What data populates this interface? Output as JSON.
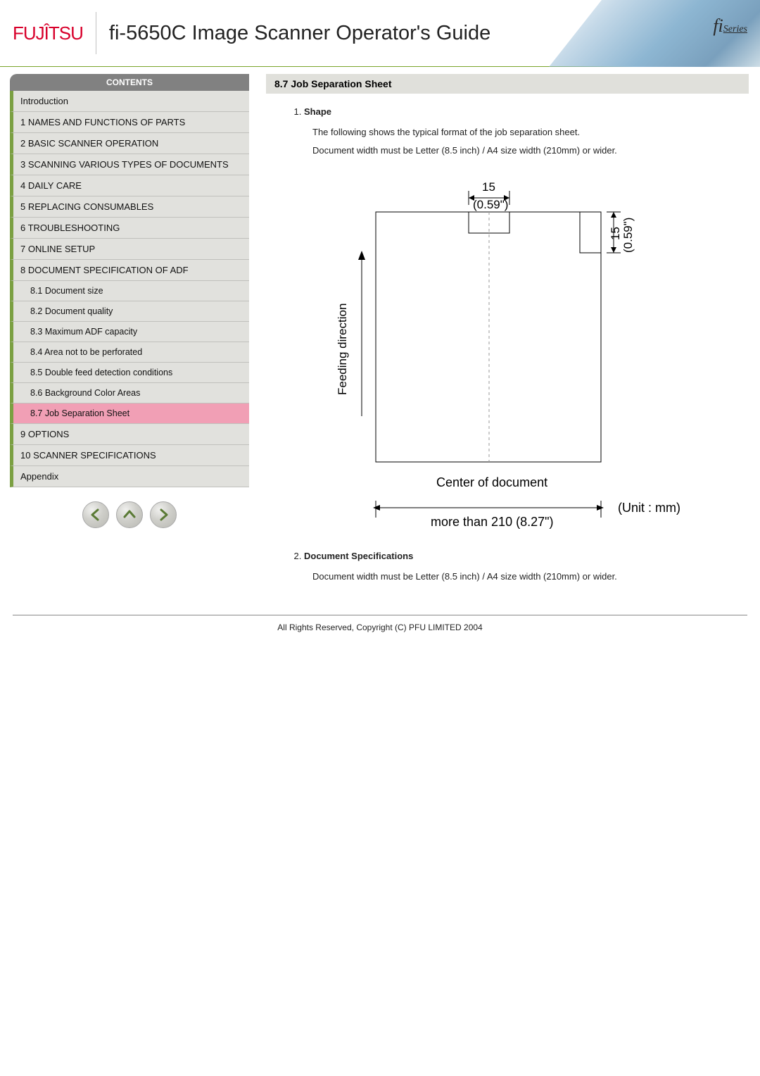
{
  "logo_text": "FUJITSU",
  "page_title": "fi-5650C Image Scanner Operator's Guide",
  "fi_series_prefix": "fi",
  "fi_series_suffix": "Series",
  "contents_header": "CONTENTS",
  "toc": [
    {
      "label": "Introduction",
      "type": "top"
    },
    {
      "label": "1 NAMES AND FUNCTIONS OF PARTS",
      "type": "top"
    },
    {
      "label": "2 BASIC SCANNER OPERATION",
      "type": "top"
    },
    {
      "label": "3 SCANNING VARIOUS TYPES OF DOCUMENTS",
      "type": "top"
    },
    {
      "label": "4 DAILY CARE",
      "type": "top"
    },
    {
      "label": "5 REPLACING CONSUMABLES",
      "type": "top"
    },
    {
      "label": "6 TROUBLESHOOTING",
      "type": "top"
    },
    {
      "label": "7 ONLINE SETUP",
      "type": "top"
    },
    {
      "label": "8 DOCUMENT SPECIFICATION OF ADF",
      "type": "top"
    },
    {
      "label": "8.1 Document size",
      "type": "sub"
    },
    {
      "label": "8.2 Document quality",
      "type": "sub"
    },
    {
      "label": "8.3 Maximum ADF capacity",
      "type": "sub"
    },
    {
      "label": "8.4 Area not to be perforated",
      "type": "sub"
    },
    {
      "label": "8.5 Double feed detection conditions",
      "type": "sub"
    },
    {
      "label": "8.6 Background Color Areas",
      "type": "sub"
    },
    {
      "label": "8.7 Job Separation Sheet",
      "type": "sub",
      "active": true
    },
    {
      "label": "9 OPTIONS",
      "type": "top"
    },
    {
      "label": "10 SCANNER SPECIFICATIONS",
      "type": "top"
    },
    {
      "label": "Appendix",
      "type": "top"
    }
  ],
  "section_title": "8.7 Job Separation Sheet",
  "body_items": [
    {
      "title": "Shape",
      "desc": "The following shows the typical format of the job separation sheet.",
      "desc2": "Document width must be Letter (8.5 inch) / A4 size width (210mm) or wider."
    },
    {
      "title": "Document Specifications",
      "desc": "Document width must be Letter (8.5 inch) / A4 size width (210mm) or wider."
    }
  ],
  "diagram": {
    "top_dim": "15",
    "top_dim_in": "(0.59\")",
    "right_dim": "15",
    "right_dim_in": "(0.59\")",
    "feeding_label": "Feeding direction",
    "center_label": "Center of document",
    "unit_label": "(Unit : mm)",
    "bottom_dim": "more than 210 (8.27\")",
    "colors": {
      "line": "#000000",
      "dashed": "#9a9a9a",
      "text": "#000000"
    }
  },
  "footer": "All Rights Reserved, Copyright (C) PFU LIMITED 2004",
  "arrow_color": "#5a7a35"
}
